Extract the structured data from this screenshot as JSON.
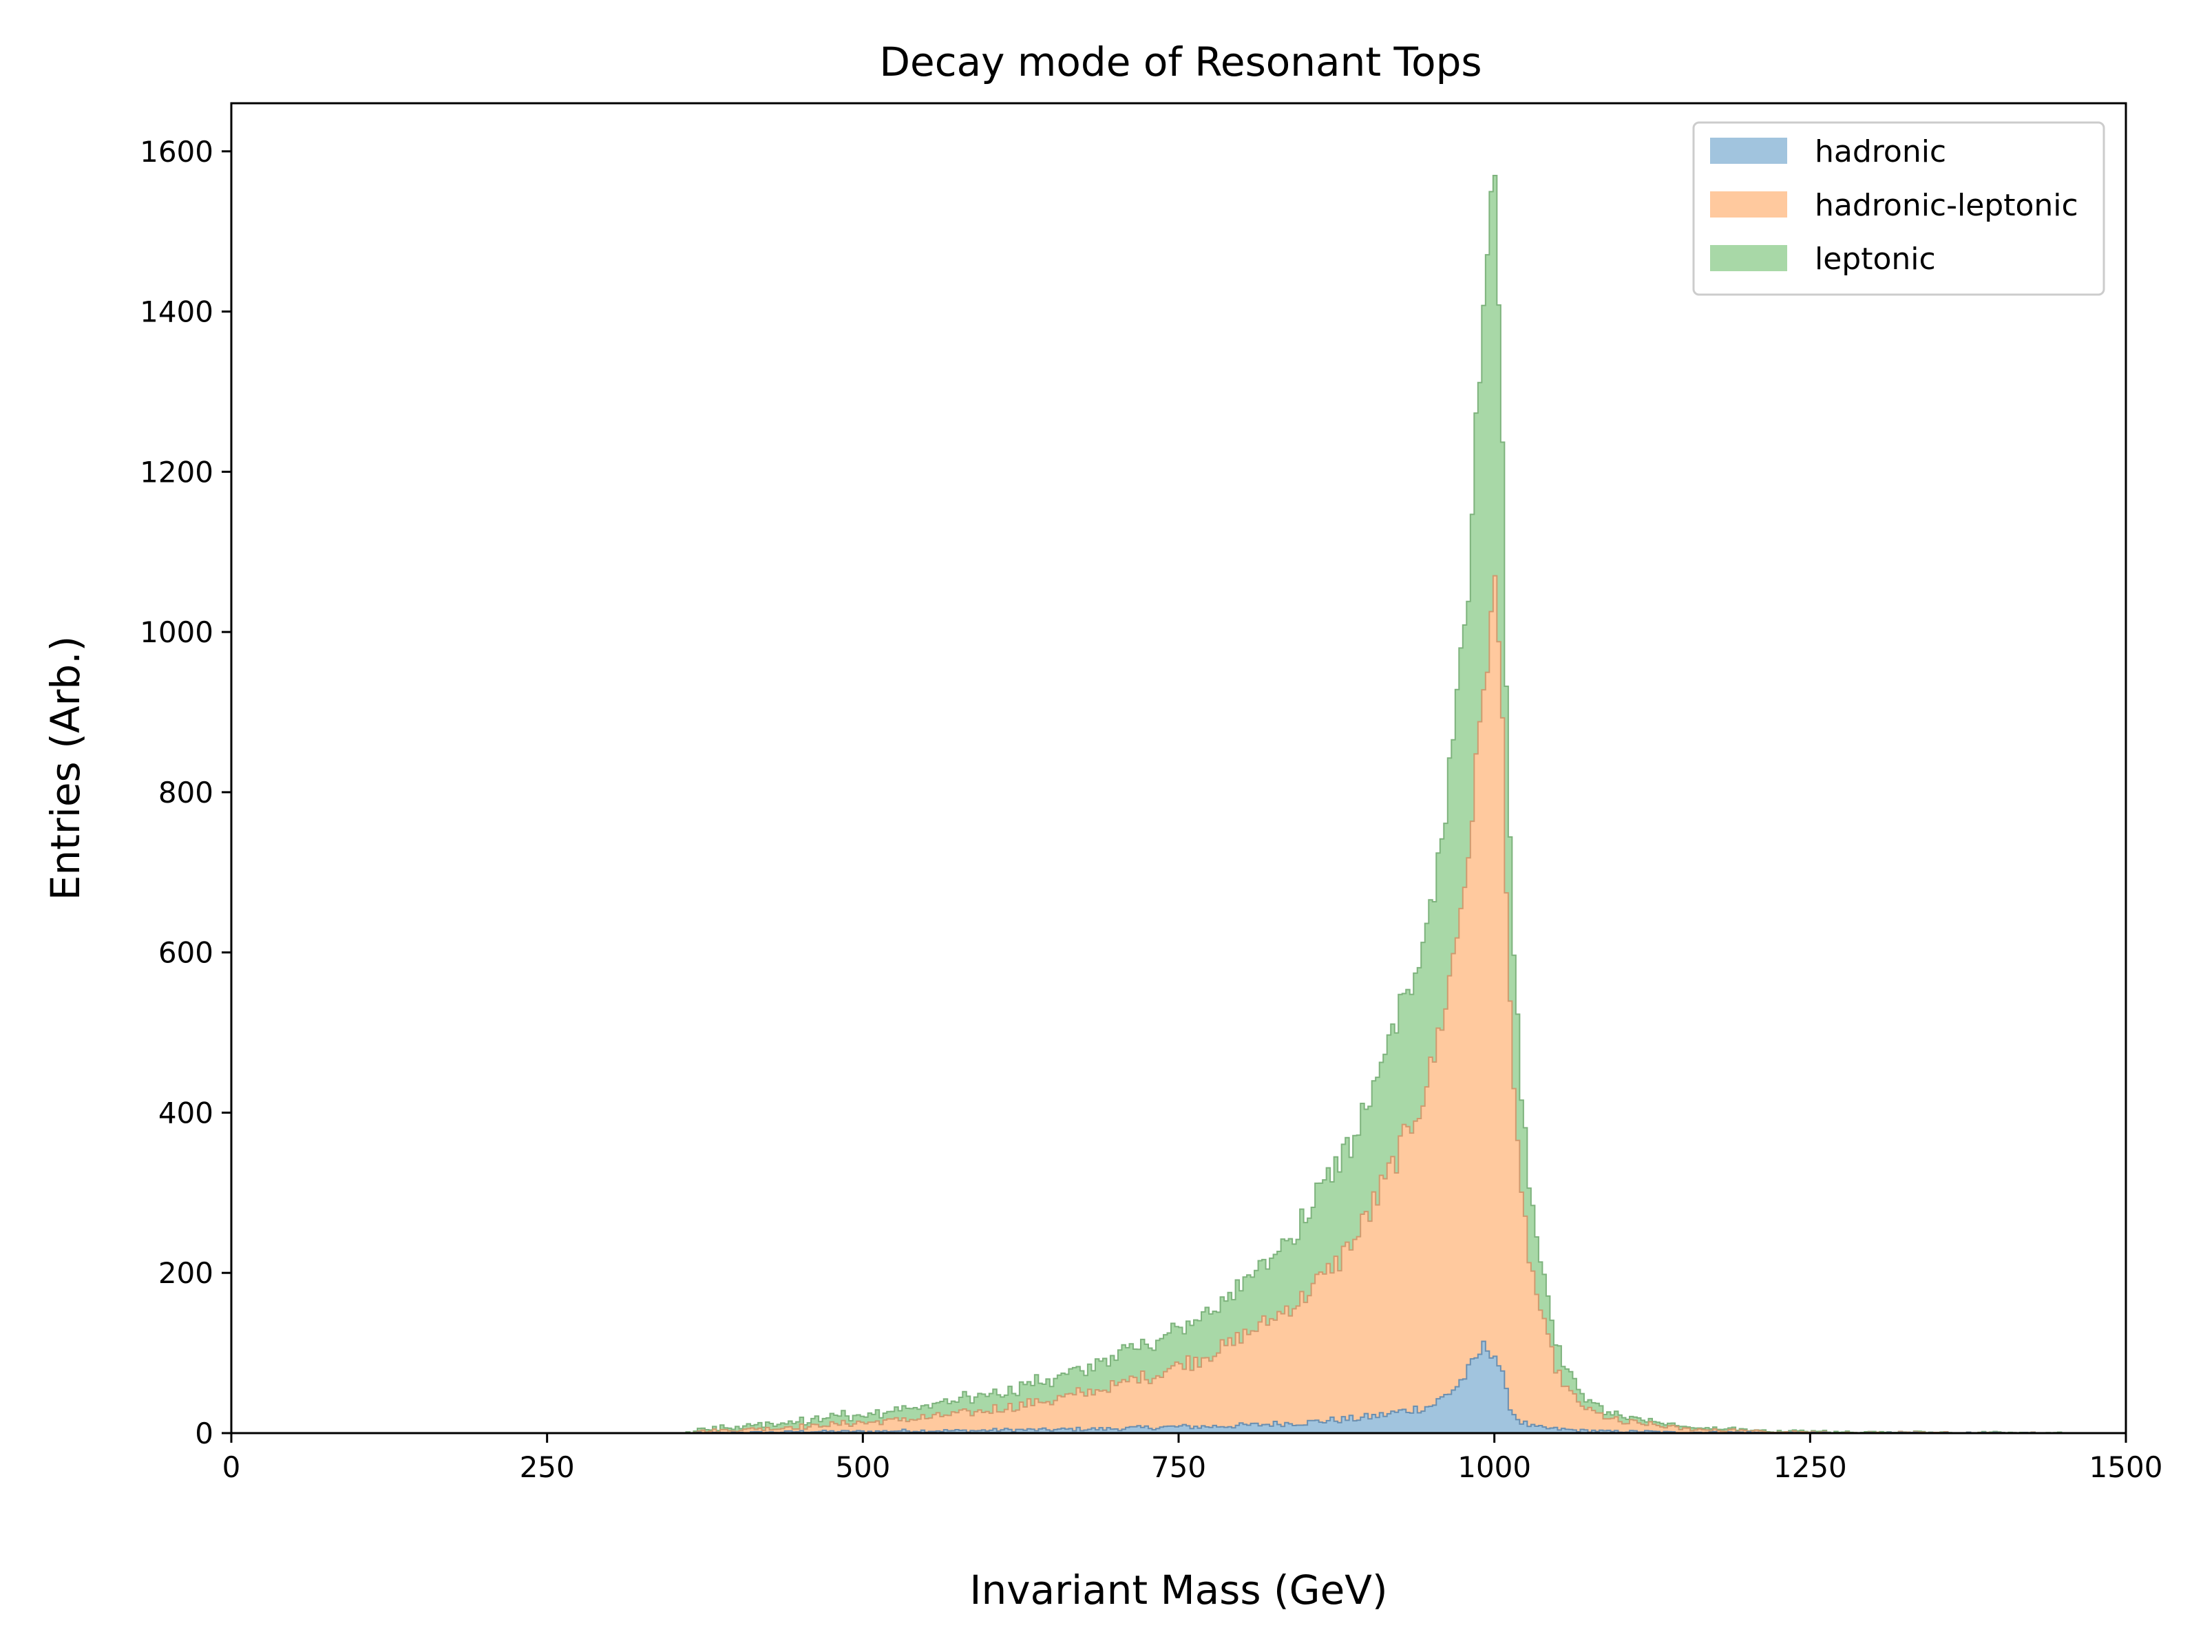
{
  "chart_data": {
    "type": "area",
    "subtype": "stacked_step_histogram",
    "title": "Decay mode of Resonant Tops",
    "xlabel": "Invariant Mass (GeV)",
    "ylabel": "Entries (Arb.)",
    "xlim": [
      0,
      1500
    ],
    "ylim": [
      0,
      1660
    ],
    "xticks": [
      0,
      250,
      500,
      750,
      1000,
      1250,
      1500
    ],
    "yticks": [
      0,
      200,
      400,
      600,
      800,
      1000,
      1200,
      1400,
      1600
    ],
    "grid": false,
    "legend_position": "top-right",
    "colors": {
      "hadronic": "#a1c4de",
      "hadronic-leptonic": "#ffc99e",
      "leptonic": "#a8d8a7"
    },
    "x": [
      370,
      390,
      410,
      430,
      450,
      470,
      490,
      510,
      530,
      550,
      570,
      590,
      610,
      630,
      650,
      670,
      690,
      710,
      730,
      750,
      770,
      790,
      810,
      830,
      850,
      870,
      890,
      910,
      930,
      950,
      960,
      970,
      980,
      985,
      990,
      995,
      1000,
      1005,
      1010,
      1015,
      1020,
      1030,
      1040,
      1050,
      1060,
      1070,
      1080,
      1090,
      1100,
      1120,
      1140,
      1160,
      1180,
      1200,
      1220,
      1240,
      1260,
      1300,
      1350,
      1400,
      1450
    ],
    "series": [
      {
        "name": "hadronic",
        "values": [
          0,
          0,
          1,
          1,
          2,
          2,
          2,
          2,
          3,
          3,
          3,
          3,
          4,
          4,
          4,
          5,
          5,
          6,
          7,
          8,
          8,
          9,
          10,
          12,
          13,
          16,
          18,
          22,
          28,
          34,
          45,
          58,
          78,
          90,
          105,
          108,
          100,
          80,
          45,
          25,
          15,
          8,
          6,
          5,
          4,
          3,
          3,
          2,
          2,
          2,
          1,
          1,
          1,
          1,
          0,
          0,
          0,
          0,
          0,
          0,
          0
        ]
      },
      {
        "name": "hadronic-leptonic",
        "values": [
          2,
          3,
          4,
          5,
          6,
          8,
          10,
          12,
          14,
          17,
          20,
          23,
          27,
          32,
          37,
          43,
          50,
          58,
          66,
          76,
          88,
          102,
          118,
          138,
          160,
          188,
          225,
          280,
          340,
          420,
          480,
          560,
          650,
          720,
          800,
          880,
          960,
          880,
          620,
          420,
          290,
          190,
          120,
          70,
          45,
          30,
          22,
          16,
          12,
          9,
          6,
          4,
          3,
          2,
          1,
          1,
          0,
          0,
          0,
          0,
          0
        ]
      },
      {
        "name": "leptonic",
        "values": [
          2,
          4,
          5,
          6,
          7,
          9,
          10,
          12,
          13,
          15,
          17,
          19,
          21,
          24,
          26,
          30,
          34,
          38,
          42,
          48,
          55,
          62,
          72,
          84,
          96,
          110,
          130,
          150,
          170,
          200,
          240,
          290,
          340,
          400,
          460,
          520,
          520,
          380,
          260,
          180,
          130,
          80,
          50,
          30,
          20,
          14,
          10,
          8,
          6,
          4,
          3,
          2,
          2,
          1,
          1,
          1,
          1,
          1,
          0,
          0,
          0
        ]
      }
    ]
  }
}
